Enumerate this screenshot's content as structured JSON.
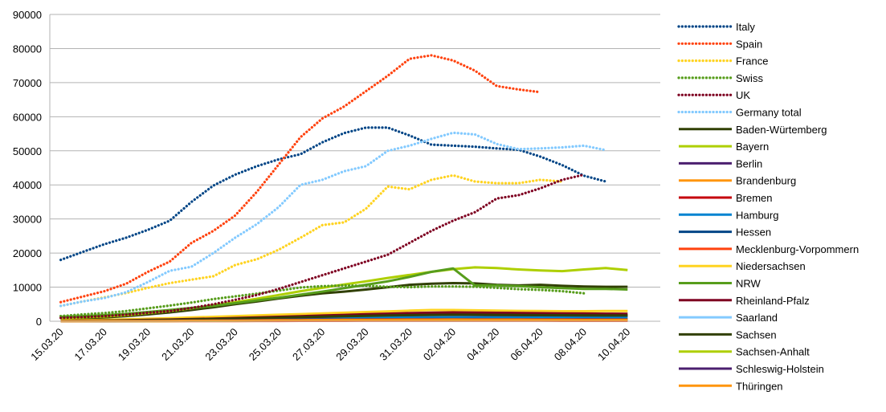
{
  "chart_data": {
    "type": "line",
    "title": "",
    "xlabel": "",
    "ylabel": "",
    "ylim": [
      0,
      90000
    ],
    "yticks": [
      0,
      10000,
      20000,
      30000,
      40000,
      50000,
      60000,
      70000,
      80000,
      90000
    ],
    "ytick_labels": [
      "0",
      "10000",
      "20000",
      "30000",
      "40000",
      "50000",
      "60000",
      "70000",
      "80000",
      "90000"
    ],
    "x": [
      "15.03.20",
      "16.03.20",
      "17.03.20",
      "18.03.20",
      "19.03.20",
      "20.03.20",
      "21.03.20",
      "22.03.20",
      "23.03.20",
      "24.03.20",
      "25.03.20",
      "26.03.20",
      "27.03.20",
      "28.03.20",
      "29.03.20",
      "30.03.20",
      "31.03.20",
      "01.04.20",
      "02.04.20",
      "03.04.20",
      "04.04.20",
      "05.04.20",
      "06.04.20",
      "07.04.20",
      "08.04.20",
      "09.04.20",
      "10.04.20",
      "11.04.20"
    ],
    "xtick_labels": [
      "15.03.20",
      "17.03.20",
      "19.03.20",
      "21.03.20",
      "23.03.20",
      "25.03.20",
      "27.03.20",
      "29.03.20",
      "31.03.20",
      "02.04.20",
      "04.04.20",
      "06.04.20",
      "08.04.20",
      "10.04.20"
    ],
    "grid": "horizontal",
    "legend_position": "right",
    "series": [
      {
        "name": "Italy",
        "color": "#004586",
        "style": "dotted",
        "values": [
          18000,
          20300,
          22600,
          24500,
          26800,
          29500,
          35000,
          39800,
          43000,
          45500,
          47500,
          49000,
          52500,
          55200,
          56800,
          56800,
          54500,
          51800,
          51500,
          51200,
          50700,
          50300,
          48300,
          45800,
          42700,
          41000,
          null,
          null
        ]
      },
      {
        "name": "Spain",
        "color": "#ff420e",
        "style": "dotted",
        "values": [
          5600,
          7200,
          8800,
          11000,
          14500,
          17500,
          23000,
          26500,
          31000,
          38000,
          46000,
          54000,
          59500,
          63000,
          67500,
          72000,
          77000,
          78000,
          76500,
          73500,
          69000,
          68000,
          67200,
          null,
          null,
          null,
          null,
          null
        ]
      },
      {
        "name": "France",
        "color": "#ffd320",
        "style": "dotted",
        "values": [
          4500,
          5800,
          7000,
          8300,
          9800,
          11200,
          12200,
          13200,
          16500,
          18200,
          21000,
          24500,
          28200,
          29000,
          33000,
          39500,
          38700,
          41500,
          42800,
          41000,
          40500,
          40500,
          41500,
          41000,
          null,
          null,
          null,
          null
        ]
      },
      {
        "name": "Swiss",
        "color": "#579d1c",
        "style": "dotted",
        "values": [
          1500,
          2000,
          2400,
          3000,
          3800,
          4600,
          5500,
          6500,
          7300,
          8100,
          9000,
          9900,
          10300,
          10500,
          10400,
          10100,
          10000,
          10200,
          10200,
          10100,
          9800,
          9400,
          9200,
          8800,
          8200,
          null,
          null,
          null
        ]
      },
      {
        "name": "UK",
        "color": "#7e0021",
        "style": "dotted",
        "values": [
          1000,
          1200,
          1500,
          1900,
          2500,
          3000,
          3900,
          5000,
          6300,
          7700,
          9500,
          11500,
          13500,
          15500,
          17500,
          19500,
          23000,
          26500,
          29500,
          32000,
          36000,
          37000,
          39000,
          41500,
          43000,
          null,
          null,
          null
        ]
      },
      {
        "name": "Germany total",
        "color": "#83caff",
        "style": "dotted",
        "values": [
          4500,
          5800,
          6800,
          8500,
          11500,
          14800,
          16000,
          20000,
          24500,
          28500,
          33500,
          40000,
          41500,
          44000,
          45500,
          50000,
          51500,
          53500,
          55300,
          54800,
          52000,
          50500,
          50700,
          51000,
          51500,
          50200,
          null,
          null
        ]
      },
      {
        "name": "Baden-Würtemberg",
        "color": "#314004",
        "style": "solid",
        "values": [
          600,
          800,
          1100,
          1500,
          2000,
          2600,
          3300,
          4100,
          5000,
          5800,
          6700,
          7500,
          8200,
          8700,
          9300,
          10000,
          10700,
          11000,
          11200,
          11100,
          10700,
          10500,
          10700,
          10400,
          10200,
          10100,
          10100,
          null
        ]
      },
      {
        "name": "Bayern",
        "color": "#aecf00",
        "style": "solid",
        "values": [
          900,
          1100,
          1400,
          1800,
          2400,
          3000,
          3800,
          4700,
          5600,
          6600,
          7700,
          8800,
          9800,
          10800,
          11700,
          12700,
          13600,
          14500,
          15300,
          15800,
          15600,
          15200,
          14900,
          14700,
          15200,
          15600,
          15000,
          null
        ]
      },
      {
        "name": "Berlin",
        "color": "#4b1f6f",
        "style": "solid",
        "values": [
          150,
          200,
          250,
          350,
          450,
          550,
          700,
          850,
          1000,
          1150,
          1300,
          1450,
          1550,
          1650,
          1700,
          1750,
          1800,
          1850,
          1850,
          1800,
          1750,
          1700,
          1650,
          1600,
          1550,
          1500,
          1500,
          null
        ]
      },
      {
        "name": "Brandenburg",
        "color": "#ff950e",
        "style": "solid",
        "values": [
          30,
          50,
          80,
          110,
          150,
          200,
          260,
          330,
          400,
          480,
          560,
          630,
          700,
          760,
          800,
          830,
          850,
          860,
          860,
          850,
          830,
          810,
          790,
          770,
          750,
          730,
          720,
          null
        ]
      },
      {
        "name": "Bremen",
        "color": "#c5000b",
        "style": "solid",
        "values": [
          20,
          30,
          40,
          55,
          70,
          90,
          110,
          130,
          150,
          170,
          190,
          210,
          230,
          245,
          255,
          260,
          265,
          265,
          260,
          255,
          250,
          245,
          240,
          235,
          230,
          225,
          220,
          null
        ]
      },
      {
        "name": "Hamburg",
        "color": "#0084d1",
        "style": "solid",
        "values": [
          80,
          120,
          170,
          230,
          300,
          380,
          460,
          550,
          640,
          730,
          820,
          900,
          970,
          1030,
          1080,
          1120,
          1150,
          1160,
          1150,
          1130,
          1100,
          1080,
          1060,
          1040,
          1020,
          1000,
          990,
          null
        ]
      },
      {
        "name": "Hessen",
        "color": "#004586",
        "style": "solid",
        "values": [
          100,
          150,
          220,
          300,
          400,
          520,
          650,
          790,
          940,
          1080,
          1230,
          1380,
          1500,
          1620,
          1720,
          1800,
          1870,
          1910,
          1930,
          1920,
          1900,
          1870,
          1840,
          1810,
          1780,
          1750,
          1730,
          null
        ]
      },
      {
        "name": "Mecklenburg-Vorpommern",
        "color": "#ff420e",
        "style": "solid",
        "values": [
          10,
          15,
          20,
          30,
          40,
          50,
          60,
          70,
          80,
          90,
          100,
          110,
          120,
          125,
          130,
          135,
          138,
          140,
          140,
          138,
          135,
          132,
          130,
          128,
          126,
          124,
          122,
          null
        ]
      },
      {
        "name": "Niedersachsen",
        "color": "#ffd320",
        "style": "solid",
        "values": [
          200,
          300,
          420,
          560,
          720,
          900,
          1100,
          1300,
          1500,
          1700,
          1900,
          2100,
          2300,
          2500,
          2700,
          2900,
          3100,
          3300,
          3300,
          3200,
          3100,
          3050,
          3000,
          2950,
          2950,
          3000,
          3000,
          null
        ]
      },
      {
        "name": "NRW",
        "color": "#579d1c",
        "style": "solid",
        "values": [
          1300,
          1500,
          1800,
          2200,
          2700,
          3300,
          3900,
          4500,
          5300,
          6100,
          6900,
          7800,
          8700,
          9700,
          10700,
          11700,
          13000,
          14500,
          15500,
          10500,
          10500,
          10300,
          10000,
          9700,
          9500,
          9500,
          9300,
          null
        ]
      },
      {
        "name": "Rheinland-Pfalz",
        "color": "#7e0021",
        "style": "solid",
        "values": [
          100,
          150,
          210,
          290,
          390,
          500,
          630,
          780,
          940,
          1110,
          1290,
          1480,
          1670,
          1860,
          2040,
          2210,
          2370,
          2500,
          2600,
          2550,
          2480,
          2420,
          2360,
          2310,
          2260,
          2210,
          2170,
          null
        ]
      },
      {
        "name": "Saarland",
        "color": "#83caff",
        "style": "solid",
        "values": [
          30,
          45,
          60,
          80,
          105,
          135,
          170,
          210,
          250,
          290,
          330,
          370,
          410,
          440,
          470,
          490,
          510,
          520,
          520,
          510,
          500,
          490,
          480,
          470,
          460,
          450,
          440,
          null
        ]
      },
      {
        "name": "Sachsen",
        "color": "#314004",
        "style": "solid",
        "values": [
          80,
          120,
          170,
          240,
          320,
          420,
          530,
          650,
          780,
          910,
          1050,
          1190,
          1330,
          1460,
          1580,
          1690,
          1790,
          1870,
          1920,
          1900,
          1860,
          1830,
          1800,
          1770,
          1740,
          1710,
          1690,
          null
        ]
      },
      {
        "name": "Sachsen-Anhalt",
        "color": "#aecf00",
        "style": "solid",
        "values": [
          20,
          30,
          45,
          60,
          80,
          100,
          125,
          150,
          180,
          210,
          240,
          270,
          300,
          325,
          345,
          360,
          370,
          375,
          375,
          370,
          365,
          360,
          355,
          350,
          345,
          340,
          335,
          null
        ]
      },
      {
        "name": "Schleswig-Holstein",
        "color": "#4b1f6f",
        "style": "solid",
        "values": [
          30,
          45,
          65,
          90,
          120,
          155,
          195,
          240,
          290,
          340,
          390,
          440,
          490,
          530,
          570,
          600,
          620,
          635,
          640,
          630,
          620,
          610,
          600,
          590,
          580,
          570,
          560,
          null
        ]
      },
      {
        "name": "Thüringen",
        "color": "#ff950e",
        "style": "solid",
        "values": [
          20,
          30,
          40,
          55,
          75,
          100,
          130,
          160,
          195,
          235,
          275,
          315,
          355,
          390,
          420,
          445,
          465,
          480,
          485,
          480,
          470,
          460,
          450,
          440,
          430,
          420,
          410,
          null
        ]
      }
    ]
  }
}
